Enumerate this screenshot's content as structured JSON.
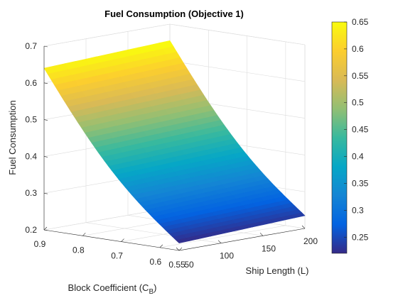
{
  "chart_data": {
    "type": "surface",
    "title": "Fuel Consumption (Objective 1)",
    "xlabel": "Ship Length (L)",
    "ylabel_prefix": "Block Coefficient (C",
    "ylabel_sub": "B",
    "ylabel_suffix": ")",
    "zlabel": "Fuel Consumption",
    "x_range": [
      50,
      200
    ],
    "y_range": [
      0.55,
      0.9
    ],
    "z_range": [
      0.2,
      0.7
    ],
    "x_ticks": [
      "50",
      "100",
      "150",
      "200"
    ],
    "y_ticks": [
      "0.55",
      "0.6",
      "0.7",
      "0.8",
      "0.9"
    ],
    "z_ticks": [
      "0.2",
      "0.3",
      "0.4",
      "0.5",
      "0.6",
      "0.7"
    ],
    "corner_values": [
      {
        "x": 50,
        "y": 0.9,
        "z": 0.64
      },
      {
        "x": 200,
        "y": 0.9,
        "z": 0.655
      },
      {
        "x": 50,
        "y": 0.55,
        "z": 0.22
      },
      {
        "x": 200,
        "y": 0.55,
        "z": 0.235
      }
    ],
    "colorbar": {
      "colormap": "parula",
      "range": [
        0.22,
        0.65
      ],
      "ticks": [
        "0.25",
        "0.3",
        "0.35",
        "0.4",
        "0.45",
        "0.5",
        "0.55",
        "0.6",
        "0.65"
      ],
      "colors": [
        "#352a87",
        "#0363e1",
        "#1485d4",
        "#06a7c6",
        "#38b99e",
        "#92bf73",
        "#d9ba56",
        "#fcce2e",
        "#f9fb0e"
      ]
    },
    "grid": true
  }
}
